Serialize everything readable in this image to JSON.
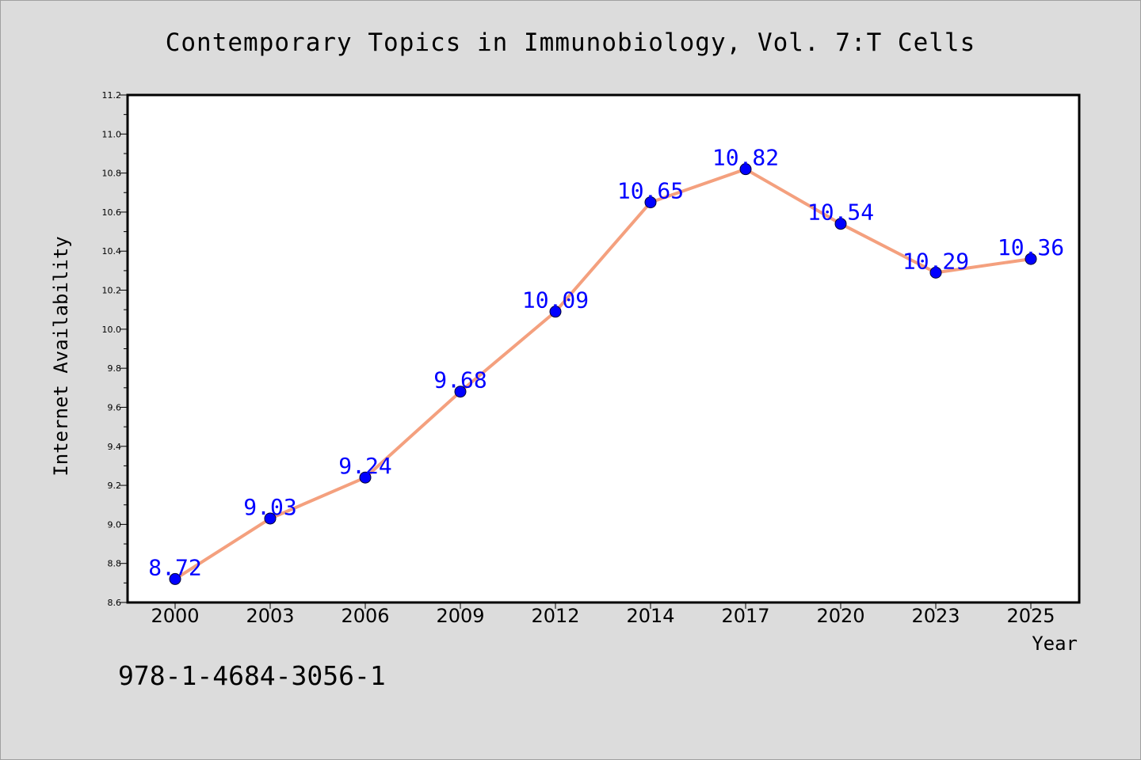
{
  "chart_data": {
    "type": "line",
    "title": "Contemporary Topics in Immunobiology, Vol. 7:T Cells",
    "xlabel": "Year",
    "ylabel": "Internet Availability",
    "categories": [
      "2000",
      "2003",
      "2006",
      "2009",
      "2012",
      "2014",
      "2017",
      "2020",
      "2023",
      "2025"
    ],
    "series": [
      {
        "values": [
          8.72,
          9.03,
          9.24,
          9.68,
          10.09,
          10.65,
          10.82,
          10.54,
          10.29,
          10.36
        ],
        "data_labels": [
          "8.72",
          "9.03",
          "9.24",
          "9.68",
          "10.09",
          "10.65",
          "10.82",
          "10.54",
          "10.29",
          "10.36"
        ],
        "line_color": "#f4a07e",
        "marker_color": "#0000ff"
      }
    ],
    "ylim": [
      8.6,
      11.2
    ],
    "yticks": [
      "8.6",
      "8.8",
      "9.0",
      "9.2",
      "9.4",
      "9.6",
      "9.8",
      "10.0",
      "10.2",
      "10.4",
      "10.6",
      "10.8",
      "11.0",
      "11.2"
    ],
    "grid": false,
    "legend": "none"
  },
  "footer": {
    "isbn": "978-1-4684-3056-1"
  },
  "colors": {
    "background": "#dcdcdc",
    "plot_background": "#ffffff",
    "line": "#f4a07e",
    "marker": "#0000ff",
    "data_label": "#0000ff"
  }
}
